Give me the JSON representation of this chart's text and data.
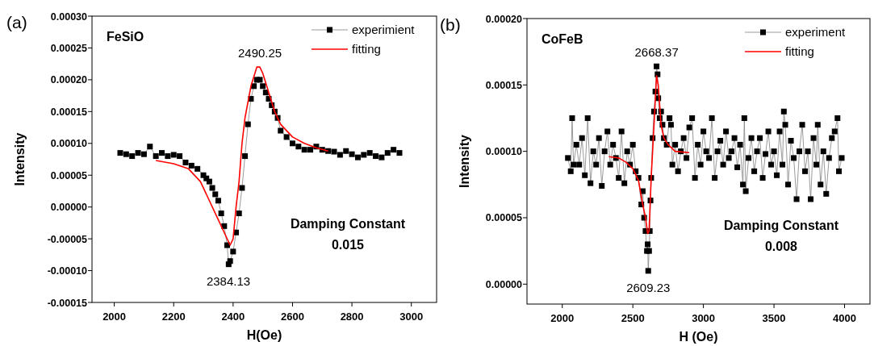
{
  "chart_data": [
    {
      "type": "scatter",
      "title": "FeSiO",
      "xlabel": "H(Oe)",
      "ylabel": "Intensity",
      "xlim": [
        1925,
        3085
      ],
      "ylim": [
        -0.00015,
        0.0003
      ],
      "xticks": [
        2000,
        2200,
        2400,
        2600,
        2800,
        3000
      ],
      "yticks": [
        {
          "value": -0.00015,
          "label": "-0.00015"
        },
        {
          "value": -0.0001,
          "label": "-0.00010"
        },
        {
          "value": -5e-05,
          "label": "-0.00005"
        },
        {
          "value": 0,
          "label": "0.00000"
        },
        {
          "value": 5e-05,
          "label": "0.00005"
        },
        {
          "value": 0.0001,
          "label": "0.00010"
        },
        {
          "value": 0.00015,
          "label": "0.00015"
        },
        {
          "value": 0.0002,
          "label": "0.00020"
        },
        {
          "value": 0.00025,
          "label": "0.00025"
        },
        {
          "value": 0.0003,
          "label": "0.00030"
        }
      ],
      "legend": "top right",
      "grid": false,
      "annotations": [
        "(a)",
        "Damping Constant",
        "0.015",
        {
          "text": "2490.25",
          "x": 2490.25,
          "y": 0.00022
        },
        {
          "text": "2384.13",
          "x": 2384.13,
          "y": -9e-05
        }
      ],
      "series": [
        {
          "name": "experimient",
          "type": "line",
          "marker": "square",
          "color": "#000000",
          "x": [
            2020,
            2040,
            2060,
            2080,
            2100,
            2120,
            2140,
            2160,
            2180,
            2200,
            2220,
            2240,
            2260,
            2280,
            2300,
            2310,
            2320,
            2330,
            2340,
            2350,
            2360,
            2370,
            2380,
            2385,
            2390,
            2400,
            2410,
            2420,
            2430,
            2440,
            2450,
            2460,
            2470,
            2480,
            2490,
            2500,
            2510,
            2520,
            2530,
            2540,
            2550,
            2560,
            2580,
            2600,
            2620,
            2640,
            2660,
            2680,
            2700,
            2720,
            2740,
            2760,
            2780,
            2800,
            2820,
            2840,
            2860,
            2880,
            2900,
            2920,
            2940,
            2960
          ],
          "values": [
            8.5e-05,
            8.3e-05,
            8e-05,
            8.5e-05,
            8.3e-05,
            9.5e-05,
            8e-05,
            8.5e-05,
            8e-05,
            8.2e-05,
            8e-05,
            7e-05,
            6.5e-05,
            6e-05,
            5e-05,
            4.5e-05,
            4e-05,
            3e-05,
            2e-05,
            1e-05,
            -1e-05,
            -3e-05,
            -6e-05,
            -9e-05,
            -8.5e-05,
            -7e-05,
            -4e-05,
            -1e-05,
            3e-05,
            8e-05,
            0.00013,
            0.00017,
            0.00019,
            0.0002,
            0.0002,
            0.00019,
            0.00018,
            0.00017,
            0.00016,
            0.00015,
            0.00014,
            0.00012,
            0.00011,
            0.0001,
            9.5e-05,
            9e-05,
            9e-05,
            9.5e-05,
            9e-05,
            8.8e-05,
            8.7e-05,
            8.2e-05,
            8.8e-05,
            8.3e-05,
            7.8e-05,
            8.2e-05,
            8.5e-05,
            8e-05,
            7.8e-05,
            8.5e-05,
            9e-05,
            8.5e-05
          ]
        },
        {
          "name": "fitting",
          "type": "line",
          "marker": "none",
          "color": "#ff0000",
          "x": [
            2140,
            2200,
            2250,
            2290,
            2320,
            2350,
            2370,
            2390,
            2400,
            2410,
            2420,
            2430,
            2440,
            2460,
            2480,
            2490,
            2500,
            2520,
            2540,
            2560,
            2600,
            2640,
            2680,
            2720
          ],
          "values": [
            7.3e-05,
            6.8e-05,
            6e-05,
            4e-05,
            1e-05,
            -2e-05,
            -4e-05,
            -6e-05,
            -5e-05,
            0,
            4e-05,
            0.0001,
            0.00014,
            0.00019,
            0.00022,
            0.00022,
            0.00021,
            0.00018,
            0.00015,
            0.00013,
            0.00011,
            0.0001,
            9.3e-05,
            8.8e-05
          ]
        }
      ]
    },
    {
      "type": "scatter",
      "title": "CoFeB",
      "xlabel": "H (Oe)",
      "ylabel": "Intensity",
      "xlim": [
        1750,
        4180
      ],
      "ylim": [
        -1.5e-05,
        0.0002
      ],
      "xticks": [
        2000,
        2500,
        3000,
        3500,
        4000
      ],
      "yticks": [
        {
          "value": 0,
          "label": "0.00000"
        },
        {
          "value": 5e-05,
          "label": "0.00005"
        },
        {
          "value": 0.0001,
          "label": "0.00010"
        },
        {
          "value": 0.00015,
          "label": "0.00015"
        },
        {
          "value": 0.0002,
          "label": "0.00020"
        }
      ],
      "legend": "top right",
      "grid": false,
      "annotations": [
        "(b)",
        "Damping Constant",
        "0.008",
        {
          "text": "2668.37",
          "x": 2668.37,
          "y": 0.000164
        },
        {
          "text": "2609.23",
          "x": 2609.23,
          "y": 1e-05
        }
      ],
      "series": [
        {
          "name": "experiment",
          "type": "line",
          "marker": "square",
          "color": "#000000",
          "x": [
            2040,
            2060,
            2070,
            2080,
            2100,
            2120,
            2140,
            2160,
            2180,
            2200,
            2220,
            2240,
            2260,
            2280,
            2300,
            2320,
            2340,
            2360,
            2380,
            2400,
            2420,
            2440,
            2460,
            2480,
            2500,
            2520,
            2540,
            2560,
            2570,
            2580,
            2590,
            2600,
            2605,
            2609,
            2615,
            2620,
            2625,
            2630,
            2640,
            2650,
            2660,
            2668,
            2675,
            2680,
            2690,
            2700,
            2710,
            2720,
            2740,
            2760,
            2770,
            2780,
            2800,
            2820,
            2840,
            2860,
            2880,
            2900,
            2920,
            2940,
            2960,
            2980,
            3000,
            3020,
            3040,
            3060,
            3080,
            3100,
            3120,
            3140,
            3160,
            3180,
            3200,
            3220,
            3240,
            3260,
            3280,
            3290,
            3300,
            3320,
            3340,
            3360,
            3380,
            3400,
            3420,
            3440,
            3460,
            3480,
            3500,
            3520,
            3540,
            3560,
            3570,
            3580,
            3600,
            3620,
            3640,
            3660,
            3680,
            3700,
            3720,
            3740,
            3760,
            3780,
            3800,
            3810,
            3830,
            3850,
            3870,
            3890,
            3910,
            3930,
            3950,
            3960,
            3980
          ],
          "values": [
            9.5e-05,
            8.5e-05,
            0.000125,
            9e-05,
            0.000105,
            9e-05,
            0.00011,
            8.2e-05,
            0.000125,
            7.6e-05,
            0.0001,
            9e-05,
            0.00011,
            7.4e-05,
            0.0001,
            0.000115,
            9e-05,
            0.000105,
            9.5e-05,
            8e-05,
            0.000115,
            7.6e-05,
            0.0001,
            9e-05,
            0.000105,
            8.5e-05,
            8e-05,
            6e-05,
            7e-05,
            5e-05,
            4e-05,
            2.5e-05,
            3e-05,
            1e-05,
            2.5e-05,
            4e-05,
            6.3e-05,
            8e-05,
            0.00011,
            0.00013,
            0.000145,
            0.000164,
            0.000158,
            0.00014,
            0.000125,
            0.00013,
            0.00012,
            0.00011,
            0.000105,
            0.000125,
            0.00012,
            9e-05,
            0.000105,
            8.5e-05,
            0.0001,
            0.00011,
            9.5e-05,
            0.000118,
            0.000125,
            8e-05,
            0.000105,
            9e-05,
            0.000115,
            0.0001,
            9.5e-05,
            0.000125,
            8e-05,
            0.0001,
            0.000108,
            9e-05,
            0.000115,
            9.5e-05,
            0.0001,
            0.00011,
            8.8e-05,
            0.000105,
            7.5e-05,
            0.000125,
            7e-05,
            9.5e-05,
            0.00011,
            8.5e-05,
            0.0001,
            0.00011,
            8e-05,
            9.8e-05,
            0.000115,
            9e-05,
            0.0001,
            8.2e-05,
            0.000115,
            9e-05,
            0.00013,
            0.00012,
            7.5e-05,
            0.000108,
            9.5e-05,
            6.4e-05,
            0.0001,
            0.00012,
            8.5e-05,
            0.0001,
            6.4e-05,
            0.00011,
            9e-05,
            0.00012,
            7.5e-05,
            0.0001,
            6.8e-05,
            9.5e-05,
            0.00011,
            0.000115,
            0.000125,
            8.5e-05,
            9.5e-05
          ]
        },
        {
          "name": "fitting",
          "type": "line",
          "marker": "none",
          "color": "#ff0000",
          "x": [
            2330,
            2400,
            2450,
            2500,
            2540,
            2570,
            2590,
            2605,
            2615,
            2630,
            2650,
            2668,
            2680,
            2700,
            2720,
            2750,
            2800,
            2900
          ],
          "values": [
            9.6e-05,
            9.5e-05,
            9.2e-05,
            8.7e-05,
            7.8e-05,
            6e-05,
            5e-05,
            3.8e-05,
            4e-05,
            8e-05,
            0.00012,
            0.000157,
            0.00015,
            0.00012,
            0.00011,
            0.000105,
            0.0001,
            9.9e-05
          ]
        }
      ]
    }
  ]
}
